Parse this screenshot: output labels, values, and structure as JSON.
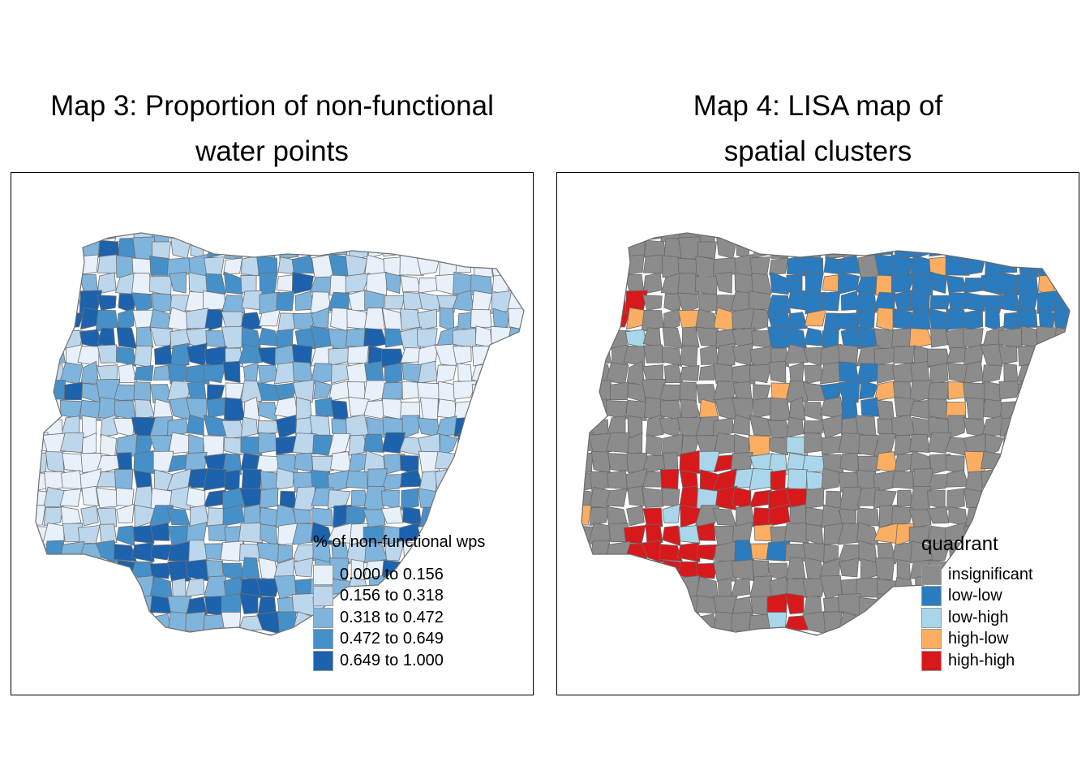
{
  "maps": [
    {
      "id": "map3",
      "title_line1": "Map 3: Proportion of non-functional",
      "title_line2": "water points",
      "legend_title": "% of non-functional wps",
      "legend": [
        {
          "label": "0.000 to 0.156",
          "color": "#e8f0fa"
        },
        {
          "label": "0.156 to 0.318",
          "color": "#bcd6ec"
        },
        {
          "label": "0.318 to 0.472",
          "color": "#7fb4dc"
        },
        {
          "label": "0.472 to 0.649",
          "color": "#4690c9"
        },
        {
          "label": "0.649 to 1.000",
          "color": "#1c62ac"
        }
      ],
      "border_color": "#707070"
    },
    {
      "id": "map4",
      "title_line1": "Map 4: LISA map of",
      "title_line2": "spatial clusters",
      "legend_title": "quadrant",
      "legend": [
        {
          "label": "insignificant",
          "color": "#8c8c8c"
        },
        {
          "label": "low-low",
          "color": "#2b7bbf"
        },
        {
          "label": "low-high",
          "color": "#a9d6ea"
        },
        {
          "label": "high-low",
          "color": "#fbae61"
        },
        {
          "label": "high-high",
          "color": "#d7191c"
        }
      ],
      "border_color": "#6a6a6a"
    }
  ]
}
